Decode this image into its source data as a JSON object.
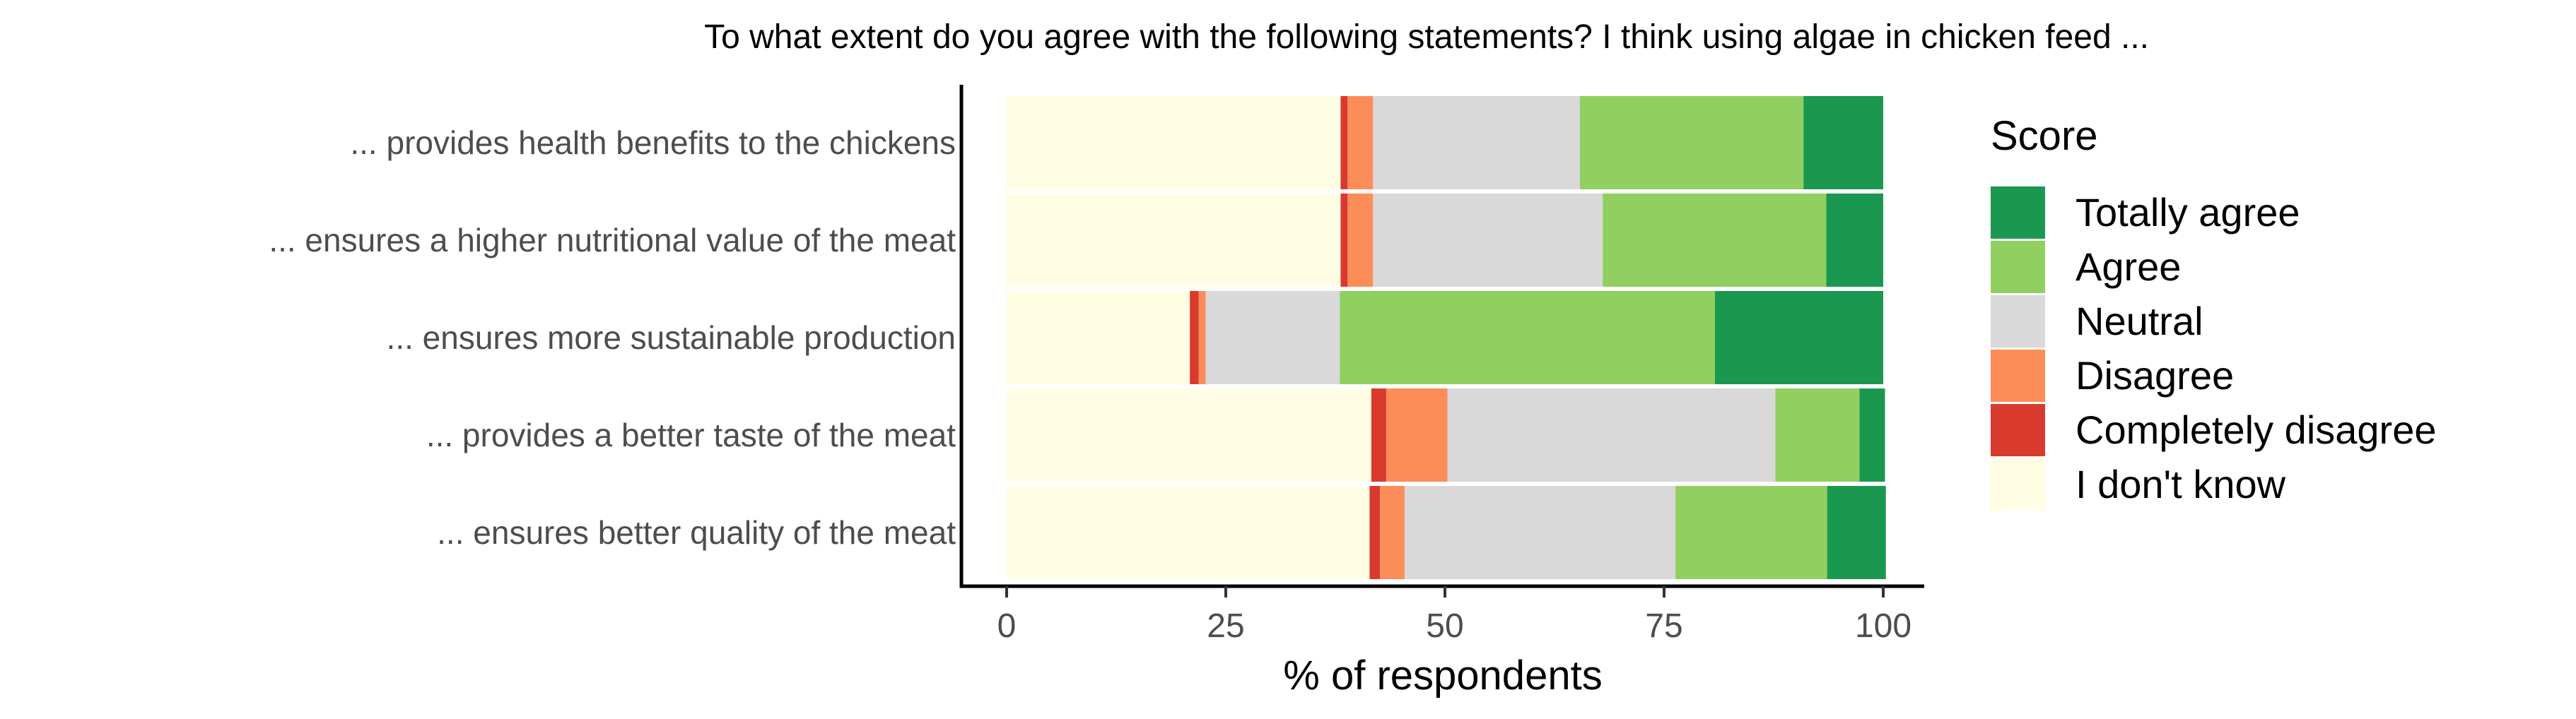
{
  "chart_data": {
    "type": "bar",
    "orientation": "horizontal",
    "stacked": true,
    "title": "To what extent do you agree with the following statements?  I think using algae in chicken feed ...",
    "xlabel": "% of respondents",
    "ylabel": "",
    "xlim": [
      0,
      100
    ],
    "x_ticks": [
      "0",
      "25",
      "50",
      "75",
      "100"
    ],
    "grid": false,
    "legend_position": "right",
    "legend_title": "Score",
    "categories": [
      "... provides health benefits to the chickens",
      "... ensures a higher nutritional value of the meat",
      "... ensures more sustainable production",
      "... provides a better taste of the meat",
      "... ensures better quality of the meat"
    ],
    "series": [
      {
        "name": "I don't know",
        "color": "#FFFDE3",
        "values": [
          38.1,
          38.1,
          20.9,
          41.6,
          41.4
        ]
      },
      {
        "name": "Completely disagree",
        "color": "#D93A2E",
        "values": [
          0.8,
          0.8,
          1.0,
          1.7,
          1.2
        ]
      },
      {
        "name": "Disagree",
        "color": "#FC8D59",
        "values": [
          2.9,
          2.9,
          0.8,
          7.0,
          2.8
        ]
      },
      {
        "name": "Neutral",
        "color": "#D9D9D9",
        "values": [
          23.6,
          26.2,
          15.3,
          37.4,
          30.9
        ]
      },
      {
        "name": "Agree",
        "color": "#91CF60",
        "values": [
          25.5,
          25.5,
          42.8,
          9.6,
          17.3
        ]
      },
      {
        "name": "Totally agree",
        "color": "#1A9850",
        "values": [
          9.1,
          6.5,
          19.2,
          2.9,
          6.7
        ]
      }
    ],
    "legend_order": [
      "Totally agree",
      "Agree",
      "Neutral",
      "Disagree",
      "Completely disagree",
      "I don't know"
    ]
  }
}
